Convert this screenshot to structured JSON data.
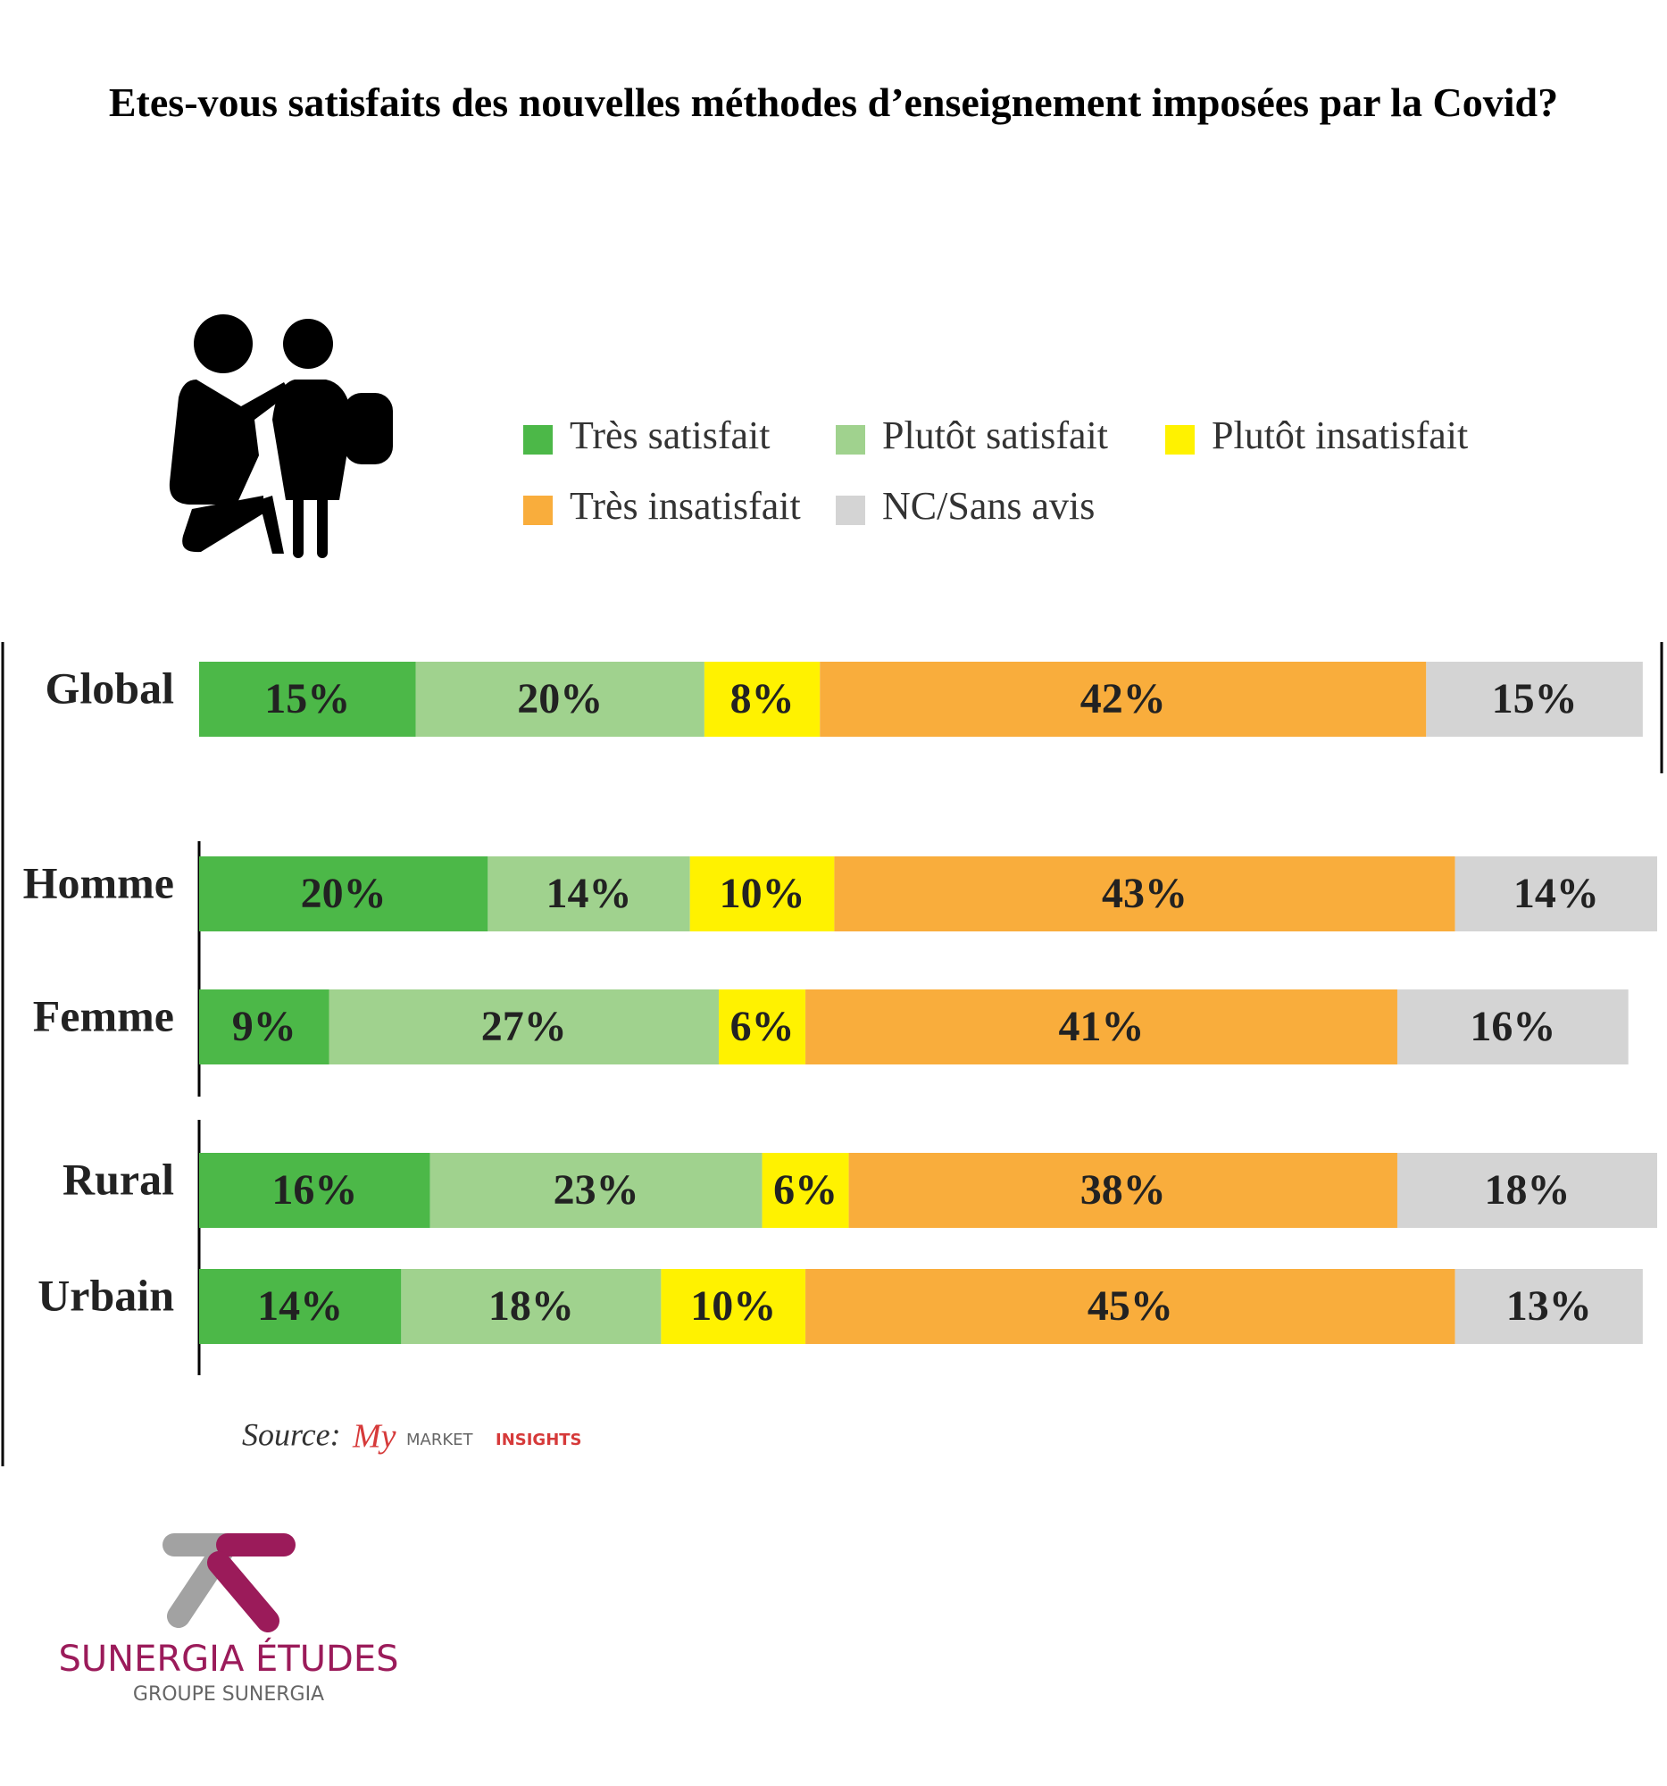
{
  "chart_data": {
    "type": "stacked-bar-horizontal",
    "title": "Etes-vous satisfaits des nouvelles méthodes d’enseignement imposées par la Covid?",
    "categories": [
      "Global",
      "Homme",
      "Femme",
      "Rural",
      "Urbain"
    ],
    "series": [
      {
        "name": "Très satisfait",
        "color": "#4cb848",
        "values": [
          15,
          20,
          9,
          16,
          14
        ],
        "value_labels": [
          "15%",
          "20%",
          "9%",
          "16%",
          "14%"
        ]
      },
      {
        "name": "Plutôt satisfait",
        "color": "#a0d28e",
        "values": [
          20,
          14,
          27,
          23,
          18
        ],
        "value_labels": [
          "20%",
          "14%",
          "27%",
          "23%",
          "18%"
        ]
      },
      {
        "name": "Plutôt insatisfait",
        "color": "#fff200",
        "values": [
          8,
          10,
          6,
          6,
          10
        ],
        "value_labels": [
          "8%",
          "10%",
          "6%",
          "6%",
          "10%"
        ]
      },
      {
        "name": "Très insatisfait",
        "color": "#f9ad3c",
        "values": [
          42,
          43,
          41,
          38,
          45
        ],
        "value_labels": [
          "42%",
          "43%",
          "41%",
          "38%",
          "45%"
        ]
      },
      {
        "name": "NC/Sans avis",
        "color": "#d4d4d4",
        "values": [
          15,
          14,
          16,
          18,
          13
        ],
        "value_labels": [
          "15%",
          "14%",
          "16%",
          "18%",
          "13%"
        ]
      }
    ],
    "xlim": [
      0,
      101
    ],
    "source": "Source:",
    "source_brand": [
      "My",
      "MARKET",
      "INSIGHTS"
    ]
  },
  "logo": {
    "name": "SUNERGIA ÉTUDES",
    "group": "GROUPE SUNERGIA"
  }
}
